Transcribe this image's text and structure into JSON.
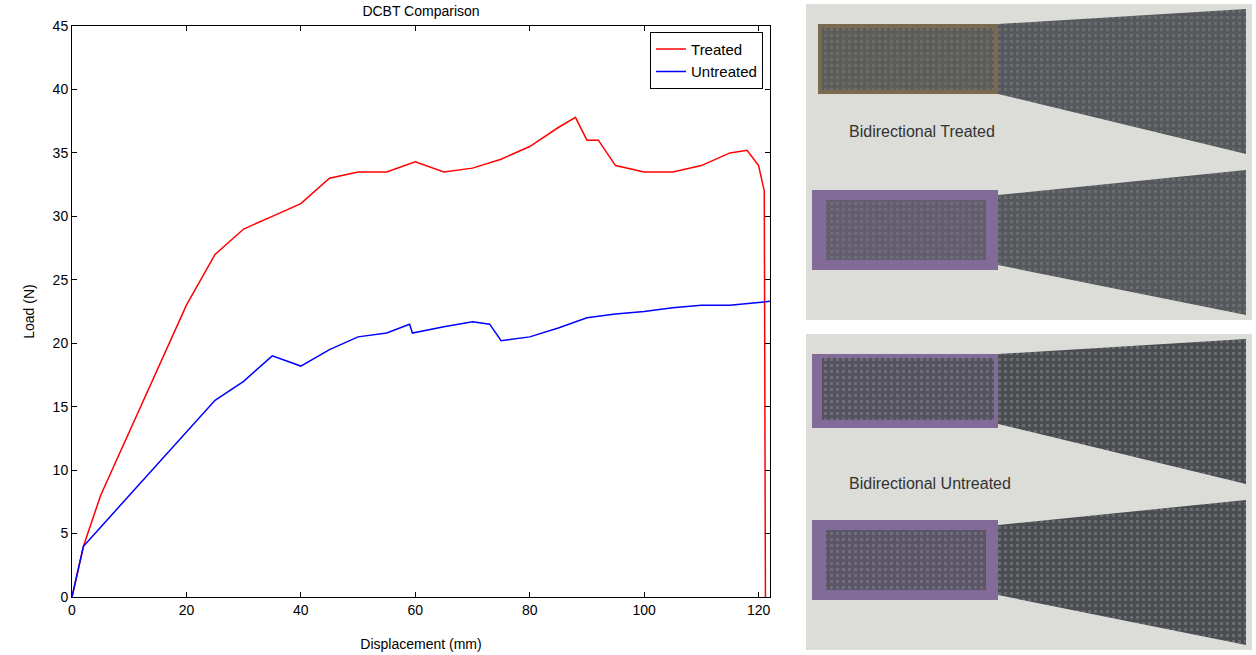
{
  "chart_data": {
    "type": "line",
    "title": "DCBT Comparison",
    "x_label": "Displacement (mm)",
    "y_label": "Load (N)",
    "xlim": [
      0,
      122
    ],
    "xticks": [
      0,
      20,
      40,
      60,
      80,
      100,
      120
    ],
    "ylim": [
      0,
      45
    ],
    "yticks": [
      0,
      5,
      10,
      15,
      20,
      25,
      30,
      35,
      40,
      45
    ],
    "grid": false,
    "legend": "top right",
    "series": [
      {
        "name": "Treated",
        "color": "#ff0000",
        "x": [
          0,
          2,
          5,
          10,
          15,
          20,
          25,
          30,
          35,
          40,
          45,
          50,
          55,
          60,
          65,
          70,
          75,
          80,
          85,
          88,
          90,
          92,
          95,
          100,
          105,
          110,
          115,
          118,
          120,
          121,
          121.2
        ],
        "values": [
          0,
          4,
          8,
          13,
          18,
          23,
          27,
          29,
          30,
          31,
          33,
          33.5,
          33.5,
          34.3,
          33.5,
          33.8,
          34.5,
          35.5,
          37,
          37.8,
          36,
          36,
          34,
          33.5,
          33.5,
          34,
          35,
          35.2,
          34,
          32,
          0
        ]
      },
      {
        "name": "Untreated",
        "color": "#0000ff",
        "x": [
          0,
          2,
          5,
          10,
          15,
          20,
          25,
          30,
          35,
          40,
          45,
          50,
          55,
          59,
          59.5,
          65,
          70,
          73,
          75,
          80,
          85,
          90,
          95,
          100,
          105,
          110,
          115,
          120,
          122
        ],
        "values": [
          0,
          4,
          5.5,
          8,
          10.5,
          13,
          15.5,
          17,
          19,
          18.2,
          19.5,
          20.5,
          20.8,
          21.5,
          20.8,
          21.3,
          21.7,
          21.5,
          20.2,
          20.5,
          21.2,
          22,
          22.3,
          22.5,
          22.8,
          23,
          23,
          23.2,
          23.3
        ]
      }
    ]
  },
  "photos": [
    {
      "label": "Bidirectional Treated"
    },
    {
      "label": "Bidirectional Untreated"
    }
  ]
}
